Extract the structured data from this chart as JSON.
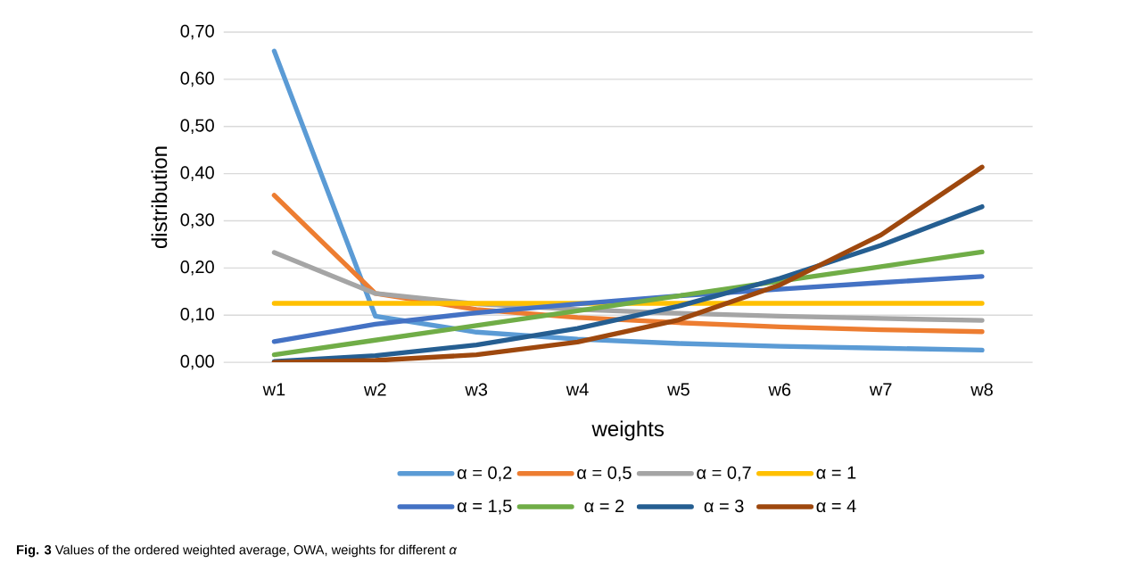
{
  "chart_data": {
    "type": "line",
    "categories": [
      "w1",
      "w2",
      "w3",
      "w4",
      "w5",
      "w6",
      "w7",
      "w8"
    ],
    "xlabel": "weights",
    "ylabel": "distribution",
    "ylim": [
      0,
      0.7
    ],
    "yticks": [
      {
        "value": 0,
        "label": "0,00"
      },
      {
        "value": 0.1,
        "label": "0,10"
      },
      {
        "value": 0.2,
        "label": "0,20"
      },
      {
        "value": 0.3,
        "label": "0,30"
      },
      {
        "value": 0.4,
        "label": "0,40"
      },
      {
        "value": 0.5,
        "label": "0,50"
      },
      {
        "value": 0.6,
        "label": "0,60"
      },
      {
        "value": 0.7,
        "label": "0,70"
      }
    ],
    "grid": "y",
    "legend": "bottom",
    "annotations": [
      "**Fig. 3** Values of the ordered weighted average, OWA, weights for different *α*"
    ],
    "series": [
      {
        "name": "α = 0,2",
        "color": "#5b9bd5",
        "values": [
          0.66,
          0.098,
          0.064,
          0.049,
          0.04,
          0.034,
          0.03,
          0.026
        ]
      },
      {
        "name": "α = 0,5",
        "color": "#ed7d31",
        "values": [
          0.354,
          0.146,
          0.112,
          0.095,
          0.084,
          0.075,
          0.069,
          0.065
        ]
      },
      {
        "name": "α = 0,7",
        "color": "#a5a5a5",
        "values": [
          0.233,
          0.146,
          0.124,
          0.112,
          0.104,
          0.098,
          0.093,
          0.089
        ]
      },
      {
        "name": "α = 1",
        "color": "#ffc000",
        "values": [
          0.125,
          0.125,
          0.125,
          0.125,
          0.125,
          0.125,
          0.125,
          0.125
        ]
      },
      {
        "name": "α = 1,5",
        "color": "#4472c4",
        "values": [
          0.044,
          0.081,
          0.105,
          0.124,
          0.141,
          0.155,
          0.169,
          0.182
        ]
      },
      {
        "name": "α = 2",
        "color": "#70ad47",
        "values": [
          0.016,
          0.047,
          0.078,
          0.109,
          0.141,
          0.172,
          0.203,
          0.234
        ]
      },
      {
        "name": "α = 3",
        "color": "#255e91",
        "values": [
          0.002,
          0.014,
          0.037,
          0.072,
          0.119,
          0.178,
          0.248,
          0.33
        ]
      },
      {
        "name": "α = 4",
        "color": "#9e480e",
        "values": [
          0.0,
          0.004,
          0.016,
          0.043,
          0.09,
          0.164,
          0.27,
          0.414
        ]
      }
    ]
  }
}
